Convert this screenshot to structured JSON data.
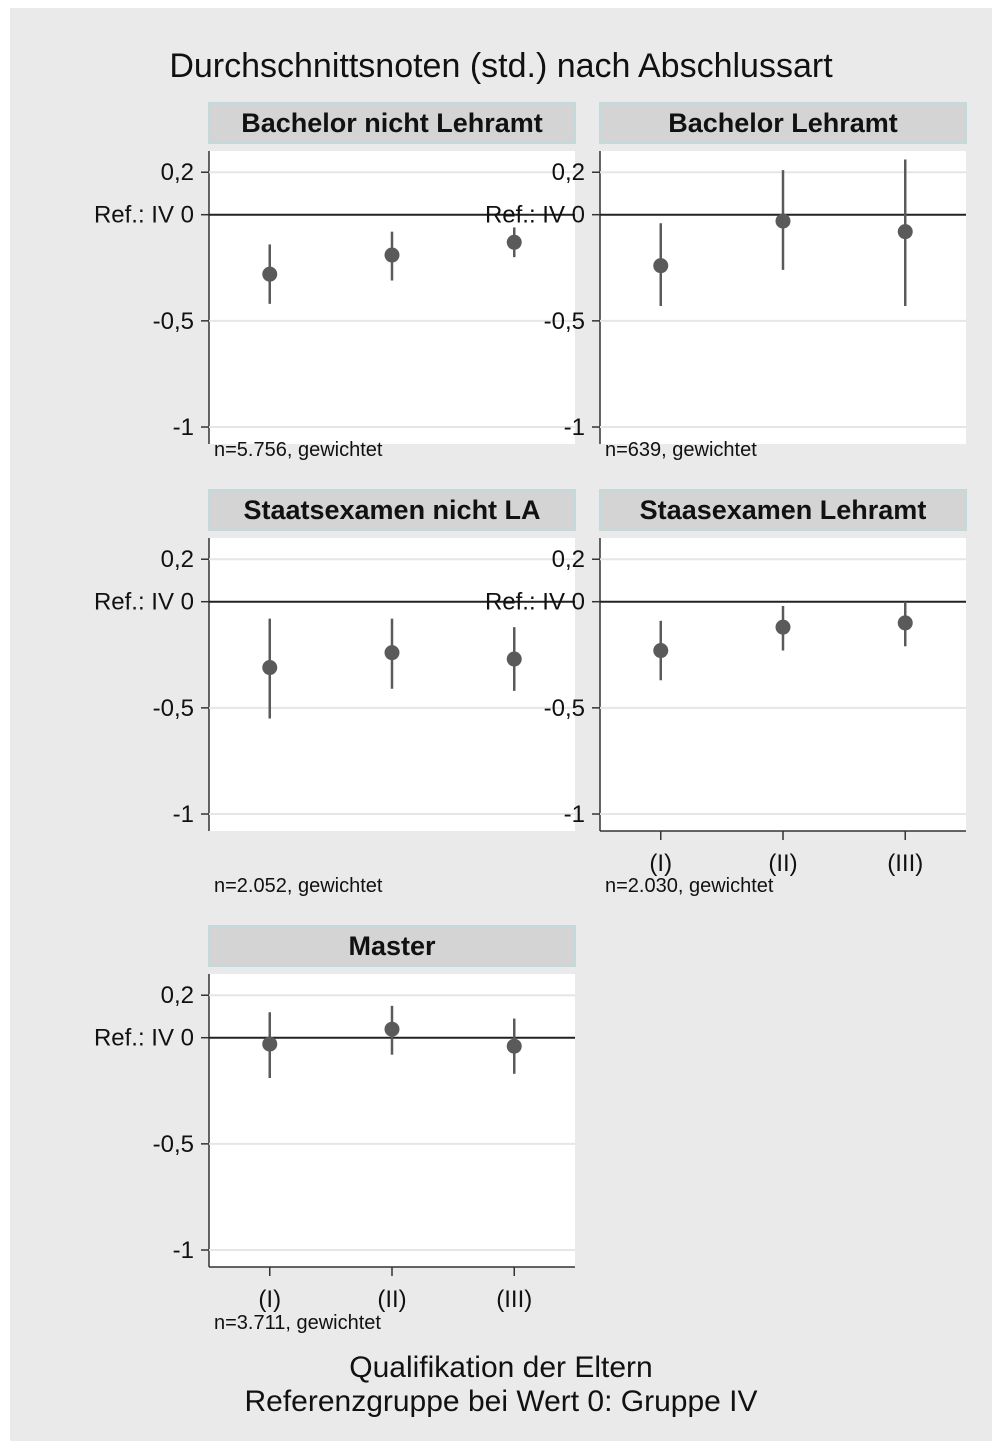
{
  "chart_data": {
    "type": "scatter",
    "title": "Durchschnittsnoten (std.) nach Abschlussart",
    "xlabel": [
      "Qualifikation der Eltern",
      "Referenzgruppe bei Wert 0: Gruppe IV"
    ],
    "categories": [
      "(I)",
      "(II)",
      "(III)"
    ],
    "ylim": [
      -1.08,
      0.3
    ],
    "yticks": [
      {
        "value": 0.2,
        "label": "0,2"
      },
      {
        "value": 0,
        "label": "Ref.: IV 0"
      },
      {
        "value": -0.5,
        "label": "-0,5"
      },
      {
        "value": -1,
        "label": "-1"
      }
    ],
    "reference_line": 0,
    "grid": true,
    "series_color": "#5a5a5a",
    "panels": [
      {
        "title": "Bachelor nicht Lehramt",
        "note": "n=5.756, gewichtet",
        "points": [
          {
            "x": "(I)",
            "y": -0.28,
            "lo": -0.42,
            "hi": -0.14
          },
          {
            "x": "(II)",
            "y": -0.19,
            "lo": -0.31,
            "hi": -0.08
          },
          {
            "x": "(III)",
            "y": -0.13,
            "lo": -0.2,
            "hi": -0.06
          }
        ]
      },
      {
        "title": "Bachelor Lehramt",
        "note": "n=639, gewichtet",
        "points": [
          {
            "x": "(I)",
            "y": -0.24,
            "lo": -0.43,
            "hi": -0.04
          },
          {
            "x": "(II)",
            "y": -0.03,
            "lo": -0.26,
            "hi": 0.21
          },
          {
            "x": "(III)",
            "y": -0.08,
            "lo": -0.43,
            "hi": 0.26
          }
        ]
      },
      {
        "title": "Staatsexamen nicht LA",
        "note": "n=2.052, gewichtet",
        "points": [
          {
            "x": "(I)",
            "y": -0.31,
            "lo": -0.55,
            "hi": -0.08
          },
          {
            "x": "(II)",
            "y": -0.24,
            "lo": -0.41,
            "hi": -0.08
          },
          {
            "x": "(III)",
            "y": -0.27,
            "lo": -0.42,
            "hi": -0.12
          }
        ]
      },
      {
        "title": "Staasexamen Lehramt",
        "note": "n=2.030, gewichtet",
        "points": [
          {
            "x": "(I)",
            "y": -0.23,
            "lo": -0.37,
            "hi": -0.09
          },
          {
            "x": "(II)",
            "y": -0.12,
            "lo": -0.23,
            "hi": -0.02
          },
          {
            "x": "(III)",
            "y": -0.1,
            "lo": -0.21,
            "hi": 0.0
          }
        ]
      },
      {
        "title": "Master",
        "note": "n=3.711, gewichtet",
        "points": [
          {
            "x": "(I)",
            "y": -0.03,
            "lo": -0.19,
            "hi": 0.12
          },
          {
            "x": "(II)",
            "y": 0.04,
            "lo": -0.08,
            "hi": 0.15
          },
          {
            "x": "(III)",
            "y": -0.04,
            "lo": -0.17,
            "hi": 0.09
          }
        ]
      }
    ]
  }
}
